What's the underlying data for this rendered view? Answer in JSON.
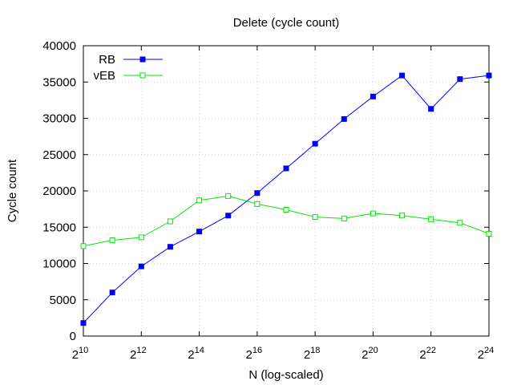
{
  "chart_data": {
    "type": "line",
    "title": "Delete (cycle count)",
    "xlabel": "N (log-scaled)",
    "ylabel": "Cycle count",
    "x_scale": "log2",
    "x": [
      10,
      11,
      12,
      13,
      14,
      15,
      16,
      17,
      18,
      19,
      20,
      21,
      22,
      23,
      24
    ],
    "xlim": [
      10,
      24
    ],
    "ylim": [
      0,
      40000
    ],
    "x_ticks": [
      10,
      12,
      14,
      16,
      18,
      20,
      22,
      24
    ],
    "x_tick_base": "2",
    "y_ticks": [
      0,
      5000,
      10000,
      15000,
      20000,
      25000,
      30000,
      35000,
      40000
    ],
    "grid": true,
    "legend_position": "top-left",
    "series": [
      {
        "name": "RB",
        "color": "#0000ff",
        "marker": "filled-square",
        "values": [
          1800,
          6000,
          9600,
          12300,
          14400,
          16600,
          19700,
          23100,
          26500,
          29900,
          33000,
          35900,
          31300,
          35400,
          35900
        ]
      },
      {
        "name": "vEB",
        "color": "#00e600",
        "marker": "open-square",
        "values": [
          12400,
          13200,
          13600,
          15800,
          18700,
          19300,
          18200,
          17400,
          16400,
          16200,
          16900,
          16600,
          16100,
          15600,
          14100
        ]
      }
    ]
  }
}
